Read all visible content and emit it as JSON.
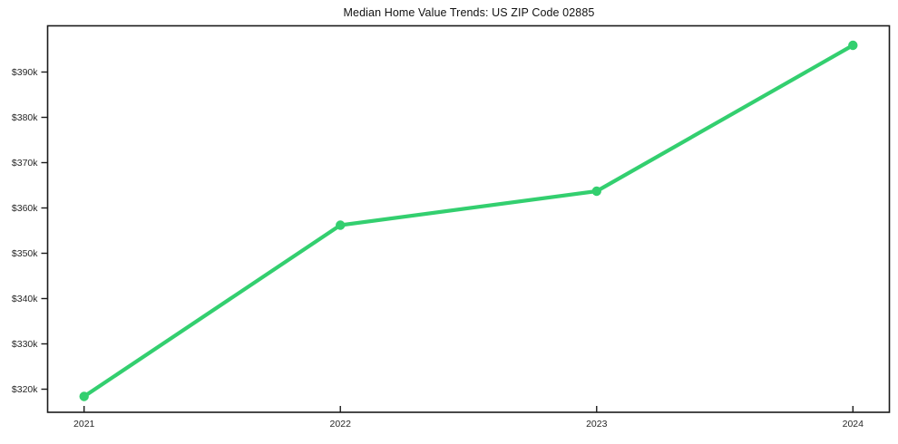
{
  "page": {
    "background_color": "#ffffff"
  },
  "chart_data": {
    "type": "line",
    "title": "Median Home Value Trends: US ZIP Code 02885",
    "x": [
      2021,
      2022,
      2023,
      2024
    ],
    "values": [
      318400,
      356200,
      363700,
      395900
    ],
    "xlabel": "",
    "ylabel": "",
    "xtick_labels": [
      "2021",
      "2022",
      "2023",
      "2024"
    ],
    "yticks": [
      320000,
      330000,
      340000,
      350000,
      360000,
      370000,
      380000,
      390000
    ],
    "ytick_labels": [
      "$320k",
      "$330k",
      "$340k",
      "$350k",
      "$360k",
      "$370k",
      "$380k",
      "$390k"
    ],
    "ylim": [
      314900,
      400200
    ],
    "grid": false,
    "legend": "none",
    "line_color": "#33cf6f",
    "marker": "circle",
    "axis_color": "#1a1a1a",
    "tick_label_color": "#262626",
    "title_color": "#111111"
  }
}
